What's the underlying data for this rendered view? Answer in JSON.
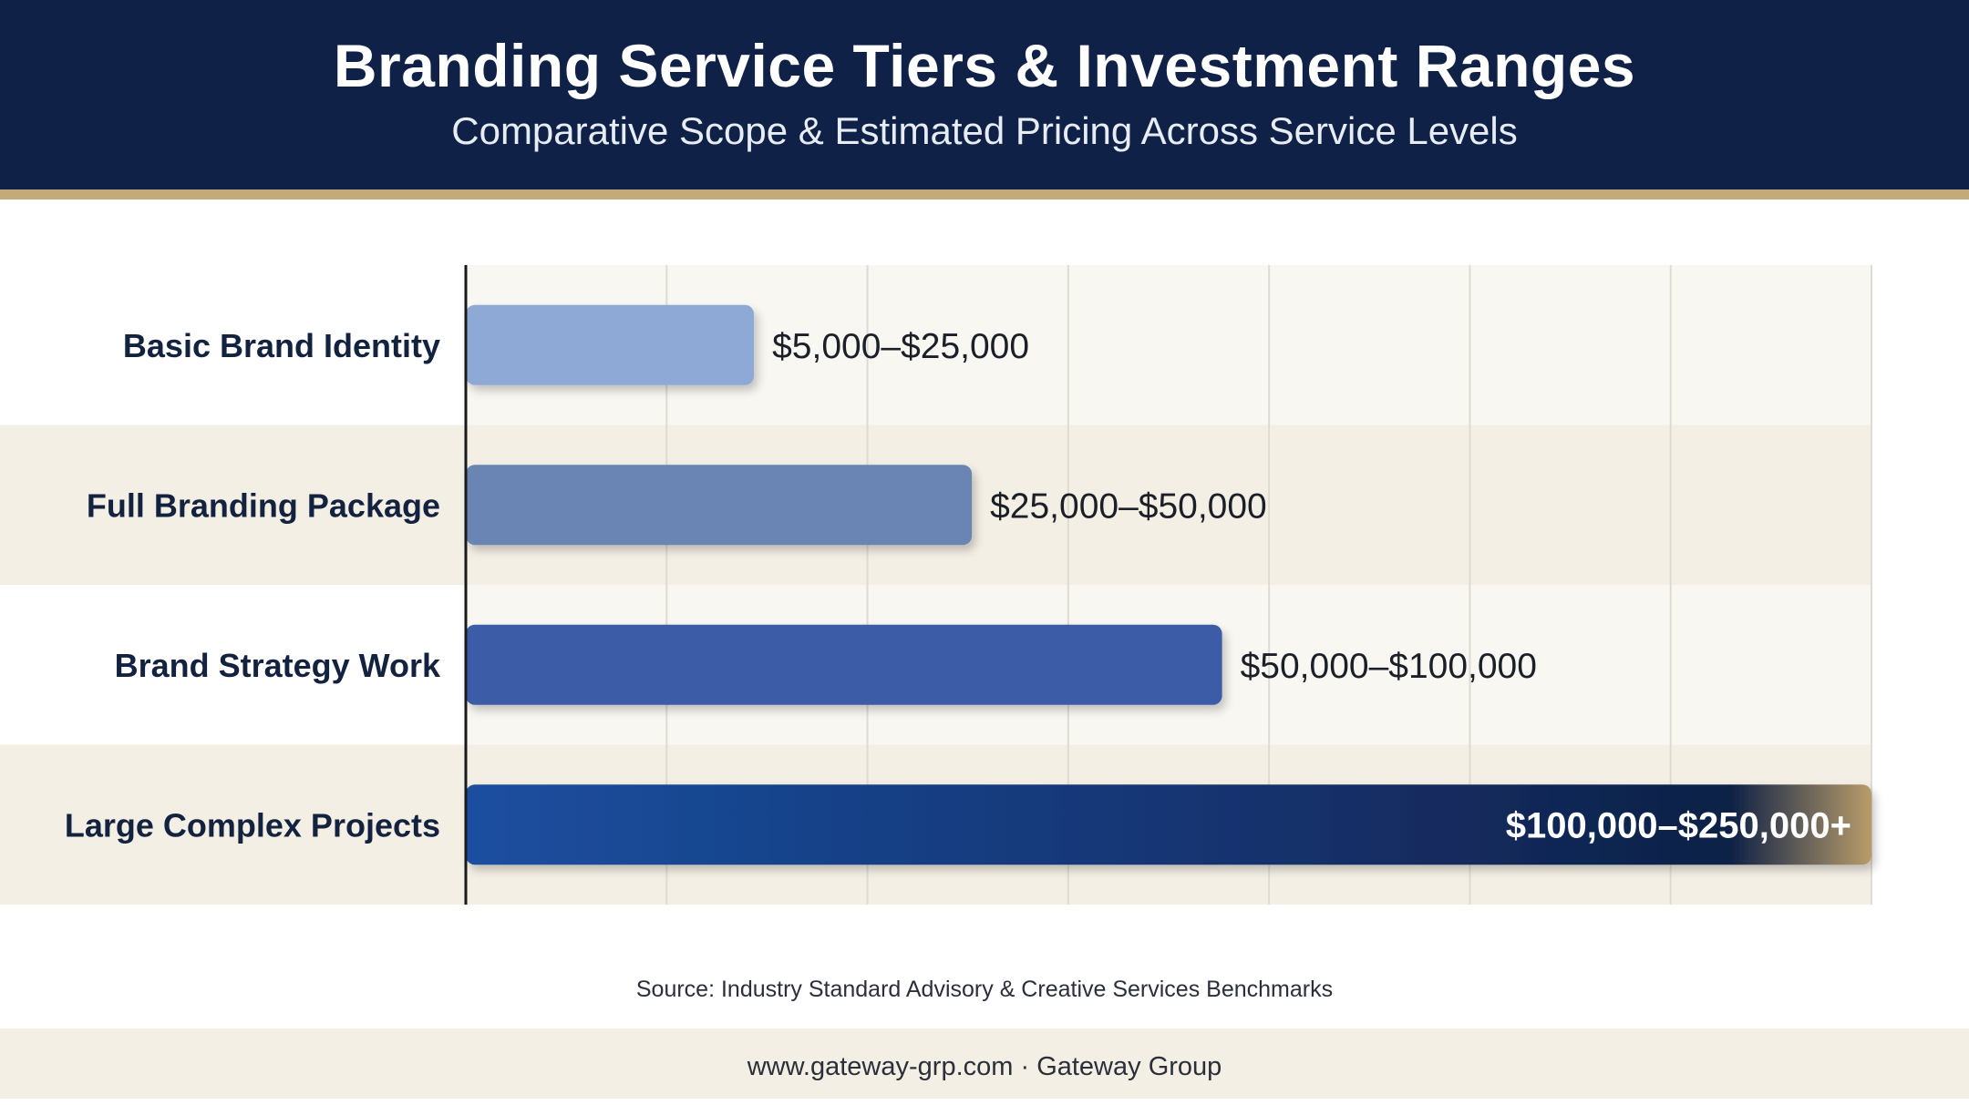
{
  "header": {
    "title": "Branding Service Tiers & Investment Ranges",
    "subtitle": "Comparative Scope & Estimated Pricing Across Service Levels"
  },
  "chart_data": {
    "type": "bar",
    "orientation": "horizontal",
    "categories": [
      "Basic Brand Identity",
      "Full Branding Package",
      "Brand Strategy Work",
      "Large Complex Projects"
    ],
    "values": [
      25000,
      50000,
      100000,
      250000
    ],
    "data_labels": [
      "$5,000–$25,000",
      "$25,000–$50,000",
      "$50,000–$100,000",
      "$100,000–$250,000+"
    ],
    "xlabel": "",
    "ylabel": "",
    "grid": true,
    "legend": "none",
    "colors": [
      "#8fa9d6",
      "#6a84b3",
      "#3d5ca7",
      "#1b4a9a"
    ]
  },
  "source": "Source: Industry Standard Advisory & Creative Services Benchmarks",
  "footer": "www.gateway-grp.com · Gateway Group",
  "theme": {
    "header_bg": "#0f2146",
    "accent_gold": "#c4a97a",
    "label_color": "#13233f",
    "band_color": "#f4efe4"
  }
}
